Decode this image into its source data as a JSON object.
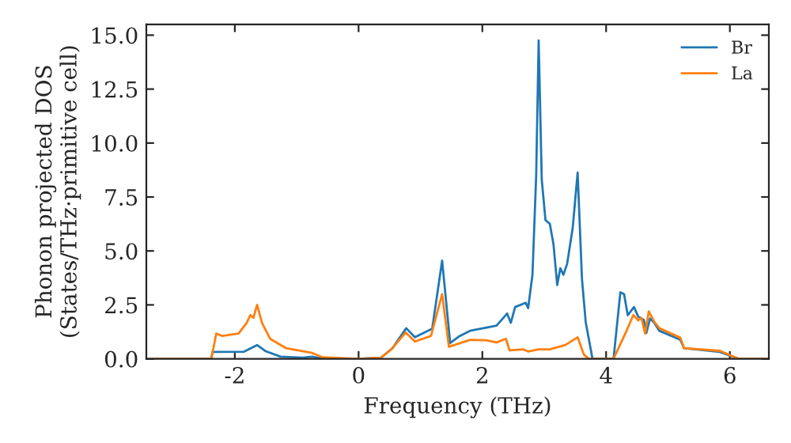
{
  "chart_data": {
    "type": "line",
    "xlabel": "Frequency (THz)",
    "ylabel": "Phonon projected DOS\n(States/THz·primitive cell)",
    "xlim": [
      -3.43,
      6.63
    ],
    "ylim": [
      0,
      15.5
    ],
    "xticks": [
      -2,
      0,
      2,
      4,
      6
    ],
    "yticks": [
      {
        "value": 0,
        "label": "0.0"
      },
      {
        "value": 2.5,
        "label": "2.5"
      },
      {
        "value": 5,
        "label": "5.0"
      },
      {
        "value": 7.5,
        "label": "7.5"
      },
      {
        "value": 10,
        "label": "10.0"
      },
      {
        "value": 12.5,
        "label": "12.5"
      },
      {
        "value": 15,
        "label": "15.0"
      }
    ],
    "grid": false,
    "legend": "top right",
    "marker": "none",
    "line_style": "solid",
    "series": [
      {
        "name": "Br",
        "color": "#1f77b4",
        "x": [
          -3.43,
          -2.38,
          -2.36,
          -1.85,
          -1.64,
          -1.5,
          -1.26,
          -0.9,
          -0.75,
          -0.6,
          0.0,
          0.36,
          0.55,
          0.77,
          0.91,
          1.19,
          1.35,
          1.48,
          1.63,
          1.8,
          2.23,
          2.4,
          2.46,
          2.53,
          2.7,
          2.74,
          2.81,
          2.87,
          2.91,
          2.96,
          3.02,
          3.09,
          3.15,
          3.21,
          3.26,
          3.31,
          3.37,
          3.46,
          3.54,
          3.61,
          3.67,
          3.78,
          4.12,
          4.23,
          4.29,
          4.35,
          4.45,
          4.52,
          4.61,
          4.65,
          4.71,
          4.78,
          4.86,
          5.2,
          5.26,
          5.84,
          6.14,
          6.63
        ],
        "values": [
          0,
          0,
          0.32,
          0.33,
          0.64,
          0.35,
          0.1,
          0.05,
          0.1,
          0.02,
          0,
          0.05,
          0.5,
          1.42,
          1.0,
          1.4,
          4.55,
          0.73,
          1.05,
          1.3,
          1.54,
          2.1,
          1.67,
          2.4,
          2.6,
          2.35,
          3.9,
          8.5,
          14.75,
          8.3,
          6.43,
          6.26,
          5.3,
          3.42,
          4.2,
          3.9,
          4.4,
          6.06,
          8.63,
          3.7,
          1.71,
          0,
          0,
          3.08,
          3.0,
          2.02,
          2.4,
          1.95,
          1.8,
          1.2,
          1.87,
          1.66,
          1.3,
          0.88,
          0.49,
          0.32,
          0,
          0
        ]
      },
      {
        "name": "La",
        "color": "#ff7f0e",
        "x": [
          -3.43,
          -2.38,
          -2.3,
          -2.2,
          -1.94,
          -1.81,
          -1.75,
          -1.7,
          -1.64,
          -1.56,
          -1.43,
          -1.17,
          -0.75,
          -0.58,
          0.0,
          0.36,
          0.53,
          0.76,
          0.91,
          1.17,
          1.35,
          1.46,
          1.8,
          2.06,
          2.23,
          2.38,
          2.44,
          2.66,
          2.74,
          2.91,
          3.09,
          3.34,
          3.54,
          3.64,
          3.72,
          4.12,
          4.31,
          4.44,
          4.52,
          4.57,
          4.63,
          4.69,
          4.78,
          4.86,
          5.2,
          5.26,
          5.84,
          6.14,
          6.63
        ],
        "values": [
          0,
          0,
          1.17,
          1.06,
          1.17,
          1.66,
          2.03,
          1.9,
          2.5,
          1.66,
          0.93,
          0.49,
          0.27,
          0.07,
          0,
          0.05,
          0.44,
          1.22,
          0.8,
          1.06,
          3.0,
          0.56,
          0.88,
          0.86,
          0.76,
          0.93,
          0.39,
          0.44,
          0.34,
          0.44,
          0.44,
          0.64,
          1.0,
          0.2,
          0,
          0,
          1.17,
          2.03,
          1.78,
          1.9,
          1.17,
          2.2,
          1.71,
          1.42,
          0.98,
          0.49,
          0.37,
          0,
          0
        ]
      }
    ]
  }
}
